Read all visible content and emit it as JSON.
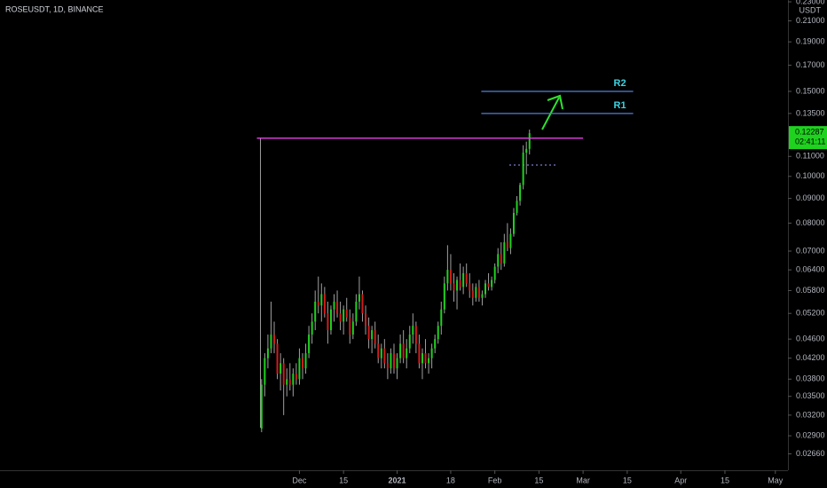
{
  "chart_data": {
    "type": "candlestick",
    "title": "ROSEUSDT, 1D, BINANCE",
    "axis_unit": "USDT",
    "log_scale": true,
    "up_color": "#1fd21f",
    "down_color": "#d01d1d",
    "wick_color": "#a0a0a0",
    "xlim": [
      -95,
      155
    ],
    "ylim": [
      0.0246,
      0.232
    ],
    "xticks": [
      {
        "value": 0,
        "label": "Dec"
      },
      {
        "value": 14,
        "label": "15"
      },
      {
        "value": 31,
        "label": "2021"
      },
      {
        "value": 48,
        "label": "18"
      },
      {
        "value": 62,
        "label": "Feb"
      },
      {
        "value": 76,
        "label": "15"
      },
      {
        "value": 90,
        "label": "Mar"
      },
      {
        "value": 104,
        "label": "15"
      },
      {
        "value": 121,
        "label": "Apr"
      },
      {
        "value": 135,
        "label": "15"
      },
      {
        "value": 151,
        "label": "May"
      }
    ],
    "yticks": [
      {
        "value": 0.23,
        "label": "0.23000"
      },
      {
        "value": 0.21,
        "label": "0.21000"
      },
      {
        "value": 0.19,
        "label": "0.19000"
      },
      {
        "value": 0.17,
        "label": "0.17000"
      },
      {
        "value": 0.15,
        "label": "0.15000"
      },
      {
        "value": 0.135,
        "label": "0.13500"
      },
      {
        "value": 0.11,
        "label": "0.11000"
      },
      {
        "value": 0.1,
        "label": "0.10000"
      },
      {
        "value": 0.09,
        "label": "0.09000"
      },
      {
        "value": 0.08,
        "label": "0.08000"
      },
      {
        "value": 0.07,
        "label": "0.07000"
      },
      {
        "value": 0.064,
        "label": "0.06400"
      },
      {
        "value": 0.058,
        "label": "0.05800"
      },
      {
        "value": 0.052,
        "label": "0.05200"
      },
      {
        "value": 0.046,
        "label": "0.04600"
      },
      {
        "value": 0.042,
        "label": "0.04200"
      },
      {
        "value": 0.038,
        "label": "0.03800"
      },
      {
        "value": 0.035,
        "label": "0.03500"
      },
      {
        "value": 0.032,
        "label": "0.03200"
      },
      {
        "value": 0.029,
        "label": "0.02900"
      },
      {
        "value": 0.0266,
        "label": "0.02660"
      }
    ],
    "x": [
      -12,
      -11,
      -10,
      -9,
      -8,
      -7,
      -6,
      -5,
      -4,
      -3,
      -2,
      -1,
      0,
      1,
      2,
      3,
      4,
      5,
      6,
      7,
      8,
      9,
      10,
      11,
      12,
      13,
      14,
      15,
      16,
      17,
      18,
      19,
      20,
      21,
      22,
      23,
      24,
      25,
      26,
      27,
      28,
      29,
      30,
      31,
      32,
      33,
      34,
      35,
      36,
      37,
      38,
      39,
      40,
      41,
      42,
      43,
      44,
      45,
      46,
      47,
      48,
      49,
      50,
      51,
      52,
      53,
      54,
      55,
      56,
      57,
      58,
      59,
      60,
      61,
      62,
      63,
      64,
      65,
      66,
      67,
      68,
      69,
      70,
      71,
      72,
      73
    ],
    "ohlc": [
      [
        0.03,
        0.038,
        0.0295,
        0.037
      ],
      [
        0.037,
        0.043,
        0.035,
        0.042
      ],
      [
        0.042,
        0.047,
        0.04,
        0.044
      ],
      [
        0.044,
        0.055,
        0.043,
        0.047
      ],
      [
        0.047,
        0.05,
        0.043,
        0.045
      ],
      [
        0.045,
        0.046,
        0.038,
        0.039
      ],
      [
        0.039,
        0.043,
        0.036,
        0.041
      ],
      [
        0.041,
        0.042,
        0.032,
        0.037
      ],
      [
        0.037,
        0.04,
        0.035,
        0.038
      ],
      [
        0.038,
        0.041,
        0.036,
        0.037
      ],
      [
        0.037,
        0.04,
        0.035,
        0.039
      ],
      [
        0.039,
        0.041,
        0.037,
        0.038
      ],
      [
        0.038,
        0.044,
        0.037,
        0.042
      ],
      [
        0.042,
        0.043,
        0.038,
        0.04
      ],
      [
        0.04,
        0.045,
        0.039,
        0.043
      ],
      [
        0.043,
        0.049,
        0.042,
        0.047
      ],
      [
        0.047,
        0.052,
        0.045,
        0.05
      ],
      [
        0.05,
        0.058,
        0.048,
        0.055
      ],
      [
        0.055,
        0.062,
        0.052,
        0.054
      ],
      [
        0.054,
        0.06,
        0.05,
        0.057
      ],
      [
        0.057,
        0.059,
        0.051,
        0.052
      ],
      [
        0.052,
        0.055,
        0.045,
        0.048
      ],
      [
        0.048,
        0.054,
        0.047,
        0.053
      ],
      [
        0.053,
        0.057,
        0.05,
        0.055
      ],
      [
        0.055,
        0.058,
        0.051,
        0.052
      ],
      [
        0.052,
        0.055,
        0.048,
        0.05
      ],
      [
        0.05,
        0.054,
        0.047,
        0.053
      ],
      [
        0.053,
        0.056,
        0.05,
        0.051
      ],
      [
        0.051,
        0.053,
        0.045,
        0.047
      ],
      [
        0.047,
        0.052,
        0.046,
        0.05
      ],
      [
        0.05,
        0.057,
        0.049,
        0.055
      ],
      [
        0.055,
        0.062,
        0.053,
        0.057
      ],
      [
        0.057,
        0.058,
        0.05,
        0.052
      ],
      [
        0.052,
        0.054,
        0.047,
        0.049
      ],
      [
        0.049,
        0.051,
        0.044,
        0.046
      ],
      [
        0.046,
        0.049,
        0.043,
        0.048
      ],
      [
        0.048,
        0.05,
        0.044,
        0.045
      ],
      [
        0.045,
        0.047,
        0.041,
        0.042
      ],
      [
        0.042,
        0.045,
        0.04,
        0.044
      ],
      [
        0.044,
        0.046,
        0.04,
        0.041
      ],
      [
        0.041,
        0.043,
        0.038,
        0.04
      ],
      [
        0.04,
        0.044,
        0.039,
        0.043
      ],
      [
        0.043,
        0.045,
        0.039,
        0.04
      ],
      [
        0.04,
        0.043,
        0.038,
        0.042
      ],
      [
        0.042,
        0.047,
        0.041,
        0.045
      ],
      [
        0.045,
        0.048,
        0.041,
        0.042
      ],
      [
        0.042,
        0.046,
        0.04,
        0.044
      ],
      [
        0.044,
        0.049,
        0.043,
        0.047
      ],
      [
        0.047,
        0.052,
        0.045,
        0.049
      ],
      [
        0.049,
        0.05,
        0.043,
        0.045
      ],
      [
        0.045,
        0.047,
        0.04,
        0.041
      ],
      [
        0.041,
        0.044,
        0.038,
        0.043
      ],
      [
        0.043,
        0.046,
        0.04,
        0.041
      ],
      [
        0.041,
        0.043,
        0.039,
        0.042
      ],
      [
        0.042,
        0.045,
        0.04,
        0.044
      ],
      [
        0.044,
        0.047,
        0.043,
        0.046
      ],
      [
        0.046,
        0.05,
        0.045,
        0.049
      ],
      [
        0.049,
        0.055,
        0.047,
        0.053
      ],
      [
        0.053,
        0.062,
        0.052,
        0.06
      ],
      [
        0.06,
        0.072,
        0.058,
        0.064
      ],
      [
        0.064,
        0.069,
        0.058,
        0.06
      ],
      [
        0.06,
        0.063,
        0.055,
        0.058
      ],
      [
        0.058,
        0.062,
        0.053,
        0.061
      ],
      [
        0.061,
        0.066,
        0.058,
        0.059
      ],
      [
        0.059,
        0.065,
        0.057,
        0.063
      ],
      [
        0.063,
        0.066,
        0.059,
        0.06
      ],
      [
        0.06,
        0.063,
        0.056,
        0.058
      ],
      [
        0.058,
        0.06,
        0.054,
        0.056
      ],
      [
        0.056,
        0.06,
        0.055,
        0.059
      ],
      [
        0.059,
        0.061,
        0.055,
        0.056
      ],
      [
        0.056,
        0.058,
        0.054,
        0.057
      ],
      [
        0.057,
        0.061,
        0.056,
        0.06
      ],
      [
        0.06,
        0.063,
        0.058,
        0.059
      ],
      [
        0.059,
        0.062,
        0.058,
        0.061
      ],
      [
        0.061,
        0.066,
        0.06,
        0.065
      ],
      [
        0.065,
        0.071,
        0.063,
        0.069
      ],
      [
        0.069,
        0.073,
        0.064,
        0.066
      ],
      [
        0.066,
        0.076,
        0.065,
        0.073
      ],
      [
        0.073,
        0.08,
        0.07,
        0.071
      ],
      [
        0.071,
        0.078,
        0.069,
        0.076
      ],
      [
        0.076,
        0.086,
        0.075,
        0.084
      ],
      [
        0.084,
        0.091,
        0.083,
        0.089
      ],
      [
        0.089,
        0.097,
        0.087,
        0.096
      ],
      [
        0.096,
        0.116,
        0.094,
        0.112
      ],
      [
        0.112,
        0.118,
        0.101,
        0.114
      ],
      [
        0.114,
        0.125,
        0.111,
        0.12287
      ]
    ],
    "countdown": "02:41:11",
    "levels": [
      {
        "value": 0.12,
        "color": "#e83ce8",
        "x": [
          -13.5,
          90
        ]
      },
      {
        "name": "R1",
        "value": 0.135,
        "color": "#4f7fd8",
        "label_color": "#3fd2e0",
        "x": [
          57.7,
          105.9
        ]
      },
      {
        "name": "R2",
        "value": 0.15,
        "color": "#4f7fd8",
        "label_color": "#3fd2e0",
        "x": [
          57.7,
          105.9
        ]
      }
    ]
  }
}
